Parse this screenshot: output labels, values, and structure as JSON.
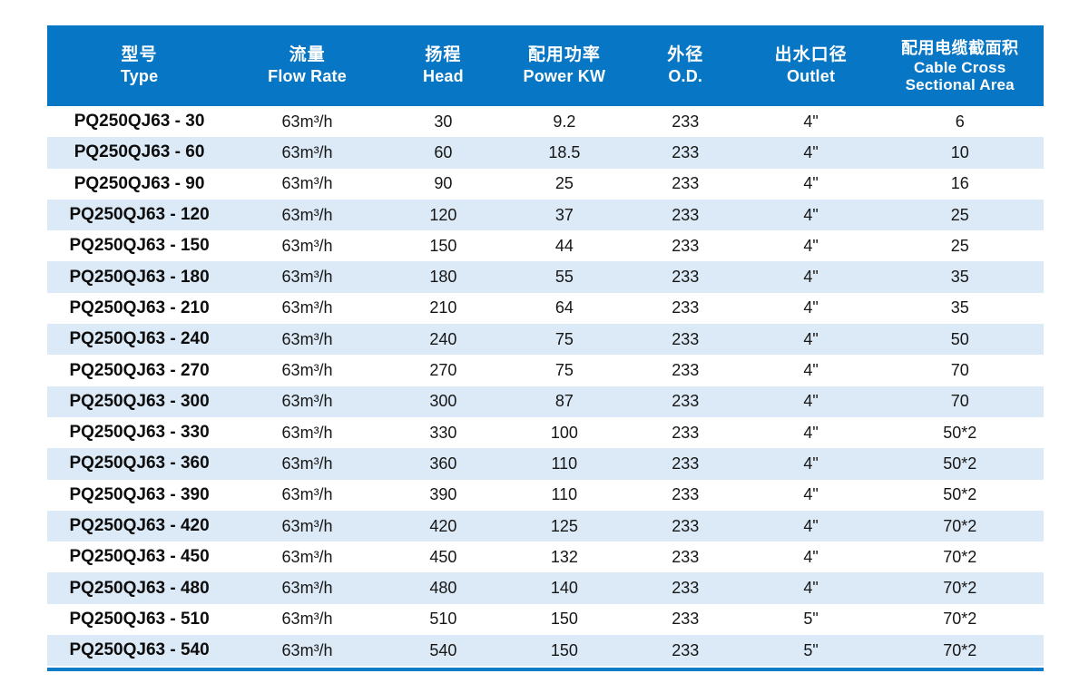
{
  "table": {
    "columns": [
      {
        "id": "type",
        "zh": "型号",
        "en": "Type"
      },
      {
        "id": "flow",
        "zh": "流量",
        "en": "Flow Rate"
      },
      {
        "id": "head",
        "zh": "扬程",
        "en": "Head"
      },
      {
        "id": "power",
        "zh": "配用功率",
        "en": "Power KW"
      },
      {
        "id": "od",
        "zh": "外径",
        "en": "O.D."
      },
      {
        "id": "outlet",
        "zh": "出水口径",
        "en": "Outlet"
      },
      {
        "id": "cable",
        "zh": "配用电缆截面积",
        "en": "Cable Cross",
        "en2": "Sectional Area"
      }
    ],
    "rows": [
      [
        "PQ250QJ63 - 30",
        "63m³/h",
        "30",
        "9.2",
        "233",
        "4\"",
        "6"
      ],
      [
        "PQ250QJ63 - 60",
        "63m³/h",
        "60",
        "18.5",
        "233",
        "4\"",
        "10"
      ],
      [
        "PQ250QJ63 - 90",
        "63m³/h",
        "90",
        "25",
        "233",
        "4\"",
        "16"
      ],
      [
        "PQ250QJ63 - 120",
        "63m³/h",
        "120",
        "37",
        "233",
        "4\"",
        "25"
      ],
      [
        "PQ250QJ63 - 150",
        "63m³/h",
        "150",
        "44",
        "233",
        "4\"",
        "25"
      ],
      [
        "PQ250QJ63 - 180",
        "63m³/h",
        "180",
        "55",
        "233",
        "4\"",
        "35"
      ],
      [
        "PQ250QJ63 - 210",
        "63m³/h",
        "210",
        "64",
        "233",
        "4\"",
        "35"
      ],
      [
        "PQ250QJ63 - 240",
        "63m³/h",
        "240",
        "75",
        "233",
        "4\"",
        "50"
      ],
      [
        "PQ250QJ63 - 270",
        "63m³/h",
        "270",
        "75",
        "233",
        "4\"",
        "70"
      ],
      [
        "PQ250QJ63 - 300",
        "63m³/h",
        "300",
        "87",
        "233",
        "4\"",
        "70"
      ],
      [
        "PQ250QJ63 - 330",
        "63m³/h",
        "330",
        "100",
        "233",
        "4\"",
        "50*2"
      ],
      [
        "PQ250QJ63 - 360",
        "63m³/h",
        "360",
        "110",
        "233",
        "4\"",
        "50*2"
      ],
      [
        "PQ250QJ63 - 390",
        "63m³/h",
        "390",
        "110",
        "233",
        "4\"",
        "50*2"
      ],
      [
        "PQ250QJ63 - 420",
        "63m³/h",
        "420",
        "125",
        "233",
        "4\"",
        "70*2"
      ],
      [
        "PQ250QJ63 - 450",
        "63m³/h",
        "450",
        "132",
        "233",
        "4\"",
        "70*2"
      ],
      [
        "PQ250QJ63 - 480",
        "63m³/h",
        "480",
        "140",
        "233",
        "4\"",
        "70*2"
      ],
      [
        "PQ250QJ63 - 510",
        "63m³/h",
        "510",
        "150",
        "233",
        "5\"",
        "70*2"
      ],
      [
        "PQ250QJ63 - 540",
        "63m³/h",
        "540",
        "150",
        "233",
        "5\"",
        "70*2"
      ]
    ]
  },
  "colors": {
    "header_bg": "#0776c4",
    "header_text": "#ffffff",
    "stripe_bg": "#dce9f6",
    "row_bg": "#ffffff",
    "body_text": "#161616",
    "bottom_rule": "#0e7bc7"
  }
}
